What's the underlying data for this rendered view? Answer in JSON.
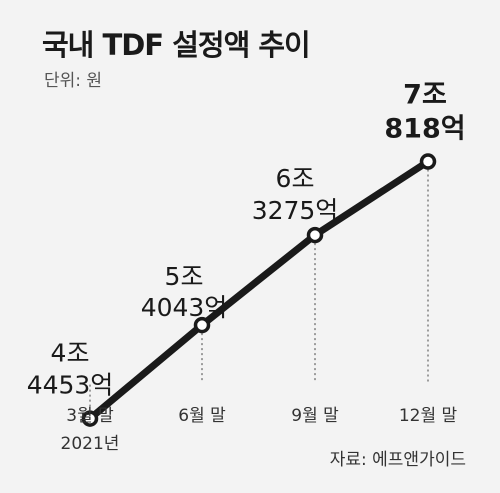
{
  "title": "국내 TDF 설정액 추이",
  "unit_note": "단위: 원",
  "source_note": "자료: 에프앤가이드",
  "colors": {
    "line": "#1a1a1a",
    "marker_fill": "#ffffff",
    "background": "#f3f3f3",
    "guide": "#444444"
  },
  "chart_data": {
    "type": "line",
    "title": "국내 TDF 설정액 추이",
    "xlabel": "",
    "ylabel": "",
    "ylim": [
      4.0,
      8.0
    ],
    "grid": false,
    "categories": [
      "3월 말",
      "6월 말",
      "9월 말",
      "12월 말"
    ],
    "category_sublabels": [
      "2021년",
      "",
      "",
      ""
    ],
    "values": [
      4.4453,
      5.4043,
      6.3275,
      7.0818
    ],
    "value_labels": [
      [
        "4조",
        "4453억"
      ],
      [
        "5조",
        "4043억"
      ],
      [
        "6조",
        "3275억"
      ],
      [
        "7조",
        "818억"
      ]
    ]
  }
}
